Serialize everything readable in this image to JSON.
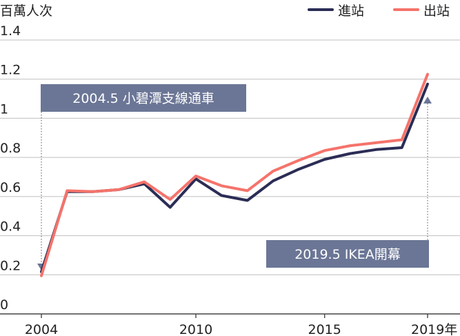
{
  "chart_data": {
    "type": "line",
    "unit_label": "百萬人次",
    "x": [
      2004,
      2005,
      2006,
      2007,
      2008,
      2009,
      2010,
      2011,
      2012,
      2013,
      2014,
      2015,
      2016,
      2017,
      2018,
      2019
    ],
    "x_tick_labels": [
      "2004",
      "2010",
      "2015",
      "2019年"
    ],
    "x_tick_values": [
      2004,
      2010,
      2015,
      2019
    ],
    "y_tick_labels": [
      "0",
      "0.2",
      "0.4",
      "0.6",
      "0.8",
      "1",
      "1.2",
      "1.4"
    ],
    "y_tick_values": [
      0,
      0.2,
      0.4,
      0.6,
      0.8,
      1.0,
      1.2,
      1.4
    ],
    "xlim": [
      2004,
      2019
    ],
    "ylim": [
      0,
      1.4
    ],
    "grid": "horizontal",
    "legend_position": "top-right",
    "series": [
      {
        "name": "進站",
        "color": "#2b2d55",
        "values": [
          0.215,
          0.625,
          0.625,
          0.635,
          0.665,
          0.545,
          0.69,
          0.605,
          0.58,
          0.68,
          0.74,
          0.79,
          0.82,
          0.84,
          0.85,
          1.175
        ]
      },
      {
        "name": "出站",
        "color": "#f5736b",
        "values": [
          0.195,
          0.63,
          0.625,
          0.635,
          0.675,
          0.585,
          0.705,
          0.655,
          0.63,
          0.73,
          0.785,
          0.835,
          0.86,
          0.875,
          0.89,
          1.225
        ]
      }
    ],
    "annotations": [
      {
        "text": "2004.5 小碧潭支線通車",
        "x": 2004,
        "y": 0.215,
        "arrow": "down"
      },
      {
        "text": "2019.5 IKEA開幕",
        "x": 2019,
        "y": 1.125,
        "arrow": "up"
      }
    ],
    "annotation_color": "#6b7696",
    "grid_color": "#bfbfbf"
  }
}
